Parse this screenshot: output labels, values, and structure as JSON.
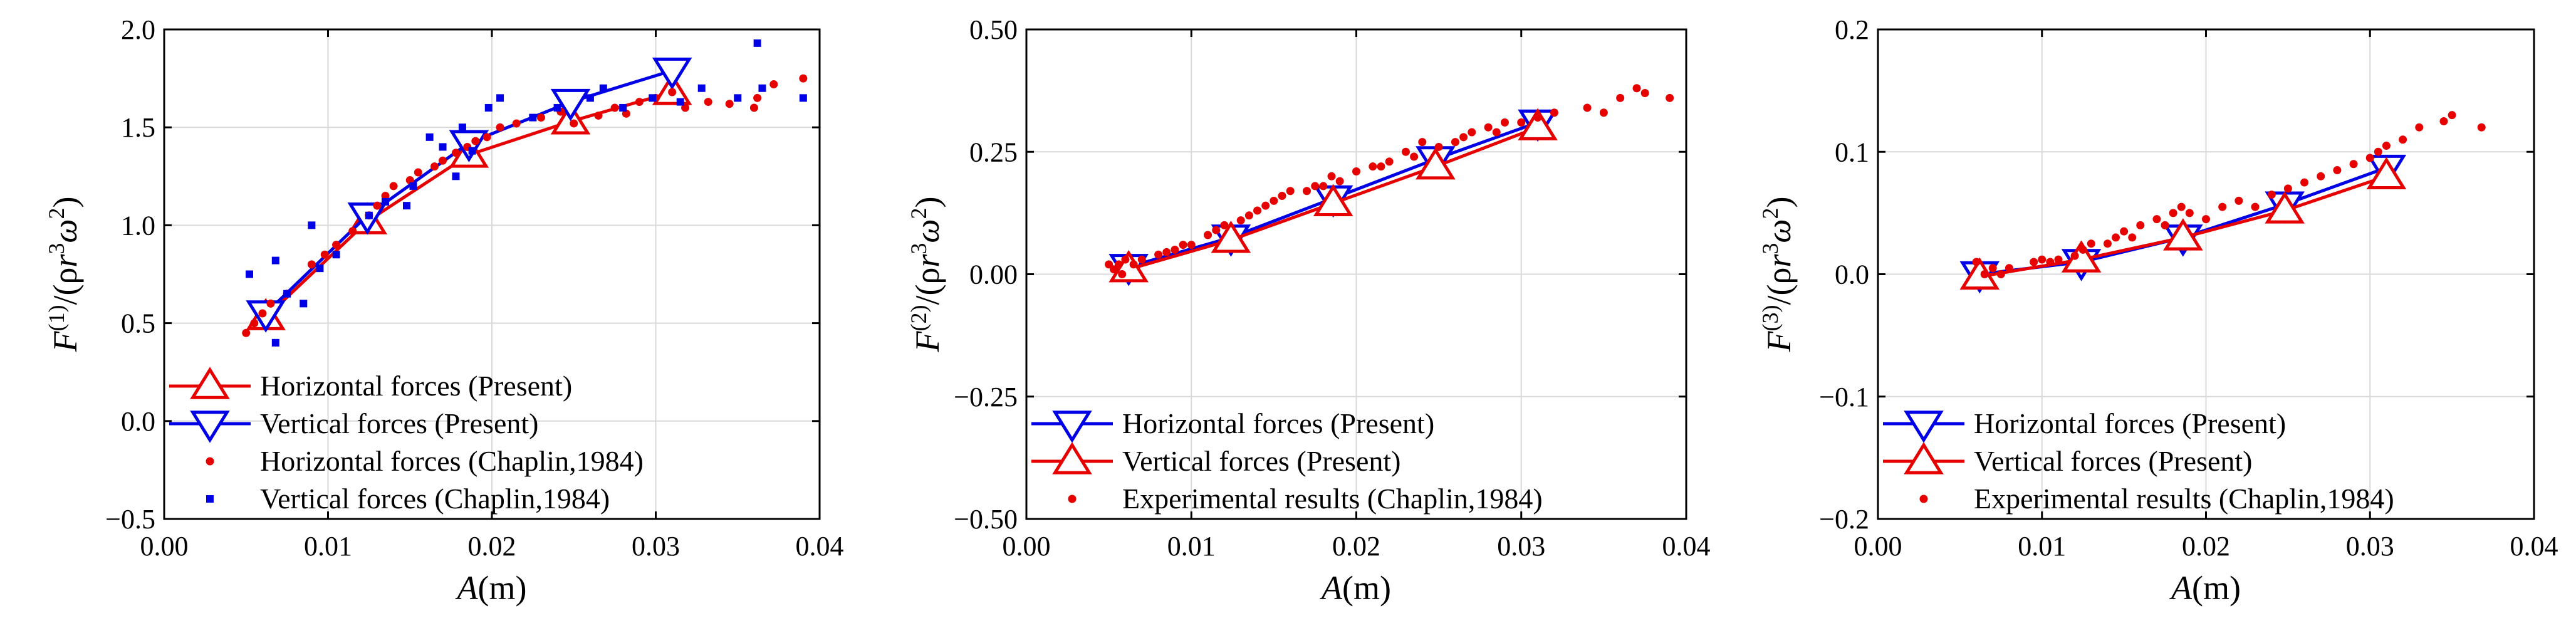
{
  "colors": {
    "red": "#e60000",
    "blue": "#0000e6",
    "grid": "#d9d9d9",
    "axis": "#000000"
  },
  "chart_data": [
    {
      "type": "line",
      "xlim": [
        0.0,
        0.04
      ],
      "ylim": [
        -0.5,
        2.0
      ],
      "xticks": [
        "0.00",
        "0.01",
        "0.02",
        "0.03",
        "0.04"
      ],
      "yticks": [
        "−0.5",
        "0.0",
        "0.5",
        "1.0",
        "1.5",
        "2.0"
      ],
      "xticks_v": [
        0.0,
        0.01,
        0.02,
        0.03,
        0.04
      ],
      "yticks_v": [
        -0.5,
        0.0,
        0.5,
        1.0,
        1.5,
        2.0
      ],
      "xlabel": "A(m)",
      "ylabel": "F(1)/(ρr3ω2)",
      "ylabel_parts": {
        "F": "F",
        "sup": "(1)",
        "mid": "/(ρ",
        "r": "r",
        "r_sup": "3",
        "w": "ω",
        "w_sup": "2",
        "end": ")"
      },
      "xlabel_parts": {
        "A": "A",
        "unit": "(m)"
      },
      "grid": true,
      "legend_position": "lower-left",
      "series": [
        {
          "name": "Horizontal forces (Present)",
          "kind": "line",
          "marker": "triangle-up",
          "color": "#e60000",
          "x": [
            0.0062,
            0.0124,
            0.0186,
            0.0248,
            0.031
          ],
          "y": [
            0.53,
            1.02,
            1.36,
            1.53,
            1.68
          ]
        },
        {
          "name": "Vertical forces (Present)",
          "kind": "line",
          "marker": "triangle-down",
          "color": "#0000e6",
          "x": [
            0.0062,
            0.0124,
            0.0186,
            0.0248,
            0.031
          ],
          "y": [
            0.55,
            1.05,
            1.42,
            1.63,
            1.79
          ]
        },
        {
          "name": "Horizontal forces (Chaplin,1984)",
          "kind": "scatter",
          "marker": "dot",
          "color": "#e60000",
          "x": [
            0.005,
            0.0055,
            0.006,
            0.0065,
            0.0075,
            0.009,
            0.0098,
            0.0105,
            0.0115,
            0.0125,
            0.013,
            0.0135,
            0.014,
            0.015,
            0.0155,
            0.0165,
            0.017,
            0.0178,
            0.0185,
            0.019,
            0.0197,
            0.0205,
            0.0215,
            0.023,
            0.0242,
            0.025,
            0.0265,
            0.0275,
            0.0282,
            0.029,
            0.03,
            0.031,
            0.0318,
            0.0332,
            0.0345,
            0.036,
            0.0362,
            0.0372,
            0.039
          ],
          "y": [
            0.45,
            0.5,
            0.55,
            0.6,
            0.65,
            0.8,
            0.85,
            0.9,
            0.97,
            1.05,
            1.1,
            1.15,
            1.2,
            1.23,
            1.27,
            1.3,
            1.33,
            1.37,
            1.4,
            1.43,
            1.45,
            1.5,
            1.52,
            1.55,
            1.58,
            1.52,
            1.56,
            1.6,
            1.57,
            1.63,
            1.65,
            1.68,
            1.6,
            1.63,
            1.62,
            1.6,
            1.65,
            1.72,
            1.75
          ]
        },
        {
          "name": "Vertical forces (Chaplin,1984)",
          "kind": "scatter",
          "marker": "square",
          "color": "#0000e6",
          "x": [
            0.0052,
            0.0068,
            0.0068,
            0.0075,
            0.0085,
            0.009,
            0.0095,
            0.0105,
            0.0125,
            0.0135,
            0.0148,
            0.0152,
            0.0162,
            0.017,
            0.0178,
            0.0182,
            0.0188,
            0.0198,
            0.0205,
            0.0225,
            0.024,
            0.026,
            0.0268,
            0.028,
            0.0298,
            0.0315,
            0.0328,
            0.035,
            0.0362,
            0.0365,
            0.039
          ],
          "y": [
            0.75,
            0.4,
            0.82,
            0.65,
            0.6,
            1.0,
            0.78,
            0.85,
            1.05,
            1.12,
            1.1,
            1.2,
            1.45,
            1.4,
            1.25,
            1.5,
            1.38,
            1.6,
            1.65,
            1.55,
            1.6,
            1.65,
            1.7,
            1.6,
            1.65,
            1.63,
            1.7,
            1.65,
            1.93,
            1.7,
            1.65
          ]
        }
      ]
    },
    {
      "type": "line",
      "xlim": [
        0.0,
        0.04
      ],
      "ylim": [
        -0.5,
        0.5
      ],
      "xticks": [
        "0.00",
        "0.01",
        "0.02",
        "0.03",
        "0.04"
      ],
      "yticks": [
        "−0.50",
        "−0.25",
        "0.00",
        "0.25",
        "0.50"
      ],
      "xticks_v": [
        0.0,
        0.01,
        0.02,
        0.03,
        0.04
      ],
      "yticks_v": [
        -0.5,
        -0.25,
        0.0,
        0.25,
        0.5
      ],
      "xlabel": "A(m)",
      "ylabel": "F(2)/(ρr3ω2)",
      "ylabel_parts": {
        "F": "F",
        "sup": "(2)",
        "mid": "/(ρ",
        "r": "r",
        "r_sup": "3",
        "w": "ω",
        "w_sup": "2",
        "end": ")"
      },
      "xlabel_parts": {
        "A": "A",
        "unit": "(m)"
      },
      "grid": true,
      "legend_position": "lower-left",
      "series": [
        {
          "name": "Horizontal forces (Present)",
          "kind": "line",
          "marker": "triangle-down",
          "color": "#0000e6",
          "x": [
            0.0062,
            0.0124,
            0.0186,
            0.0248,
            0.031
          ],
          "y": [
            0.015,
            0.075,
            0.155,
            0.235,
            0.31
          ]
        },
        {
          "name": "Vertical forces (Present)",
          "kind": "line",
          "marker": "triangle-up",
          "color": "#e60000",
          "x": [
            0.0062,
            0.0124,
            0.0186,
            0.0248,
            0.031
          ],
          "y": [
            0.01,
            0.07,
            0.145,
            0.22,
            0.3
          ]
        },
        {
          "name": "Experimental results (Chaplin,1984)",
          "kind": "scatter",
          "marker": "dot",
          "color": "#e60000",
          "x": [
            0.005,
            0.0053,
            0.0056,
            0.0058,
            0.006,
            0.0065,
            0.007,
            0.008,
            0.0085,
            0.009,
            0.0095,
            0.01,
            0.011,
            0.0115,
            0.012,
            0.013,
            0.0135,
            0.014,
            0.0145,
            0.015,
            0.0155,
            0.016,
            0.017,
            0.0175,
            0.018,
            0.0185,
            0.019,
            0.02,
            0.021,
            0.0215,
            0.022,
            0.023,
            0.0235,
            0.024,
            0.025,
            0.026,
            0.0265,
            0.027,
            0.028,
            0.0285,
            0.029,
            0.03,
            0.031,
            0.032,
            0.034,
            0.035,
            0.036,
            0.037,
            0.0375,
            0.039
          ],
          "y": [
            0.02,
            0.01,
            0.02,
            0.0,
            0.03,
            0.02,
            0.03,
            0.04,
            0.045,
            0.05,
            0.06,
            0.06,
            0.08,
            0.09,
            0.1,
            0.11,
            0.12,
            0.13,
            0.14,
            0.15,
            0.16,
            0.17,
            0.17,
            0.18,
            0.18,
            0.2,
            0.19,
            0.21,
            0.22,
            0.22,
            0.23,
            0.25,
            0.24,
            0.27,
            0.26,
            0.27,
            0.28,
            0.29,
            0.3,
            0.29,
            0.31,
            0.31,
            0.32,
            0.33,
            0.34,
            0.33,
            0.36,
            0.38,
            0.37,
            0.36
          ]
        }
      ]
    },
    {
      "type": "line",
      "xlim": [
        0.0,
        0.04
      ],
      "ylim": [
        -0.2,
        0.2
      ],
      "xticks": [
        "0.00",
        "0.01",
        "0.02",
        "0.03",
        "0.04"
      ],
      "yticks": [
        "−0.2",
        "−0.1",
        "0.0",
        "0.1",
        "0.2"
      ],
      "xticks_v": [
        0.0,
        0.01,
        0.02,
        0.03,
        0.04
      ],
      "yticks_v": [
        -0.2,
        -0.1,
        0.0,
        0.1,
        0.2
      ],
      "xlabel": "A(m)",
      "ylabel": "F(3)/(ρr3ω2)",
      "ylabel_parts": {
        "F": "F",
        "sup": "(3)",
        "mid": "/(ρ",
        "r": "r",
        "r_sup": "3",
        "w": "ω",
        "w_sup": "2",
        "end": ")"
      },
      "xlabel_parts": {
        "A": "A",
        "unit": "(m)"
      },
      "grid": true,
      "legend_position": "lower-left",
      "series": [
        {
          "name": "Horizontal forces (Present)",
          "kind": "line",
          "marker": "triangle-down",
          "color": "#0000e6",
          "x": [
            0.0062,
            0.0124,
            0.0186,
            0.0248,
            0.031
          ],
          "y": [
            0.0,
            0.01,
            0.03,
            0.057,
            0.087
          ]
        },
        {
          "name": "Vertical forces (Present)",
          "kind": "line",
          "marker": "triangle-up",
          "color": "#e60000",
          "x": [
            0.0062,
            0.0124,
            0.0186,
            0.0248,
            0.031
          ],
          "y": [
            -0.002,
            0.012,
            0.03,
            0.052,
            0.08
          ]
        },
        {
          "name": "Experimental results (Chaplin,1984)",
          "kind": "scatter",
          "marker": "dot",
          "color": "#e60000",
          "x": [
            0.006,
            0.0065,
            0.007,
            0.0075,
            0.008,
            0.0095,
            0.01,
            0.0105,
            0.011,
            0.012,
            0.0125,
            0.013,
            0.014,
            0.0145,
            0.015,
            0.0155,
            0.016,
            0.017,
            0.0175,
            0.018,
            0.0185,
            0.019,
            0.02,
            0.021,
            0.022,
            0.023,
            0.024,
            0.025,
            0.026,
            0.027,
            0.028,
            0.029,
            0.03,
            0.0305,
            0.031,
            0.032,
            0.033,
            0.0345,
            0.035,
            0.0368
          ],
          "y": [
            0.01,
            0.0,
            0.005,
            0.0,
            0.005,
            0.01,
            0.012,
            0.01,
            0.012,
            0.015,
            0.02,
            0.025,
            0.025,
            0.03,
            0.035,
            0.03,
            0.04,
            0.045,
            0.04,
            0.05,
            0.055,
            0.05,
            0.045,
            0.055,
            0.06,
            0.055,
            0.065,
            0.07,
            0.075,
            0.08,
            0.085,
            0.09,
            0.095,
            0.1,
            0.105,
            0.11,
            0.12,
            0.125,
            0.13,
            0.12
          ]
        }
      ]
    }
  ]
}
